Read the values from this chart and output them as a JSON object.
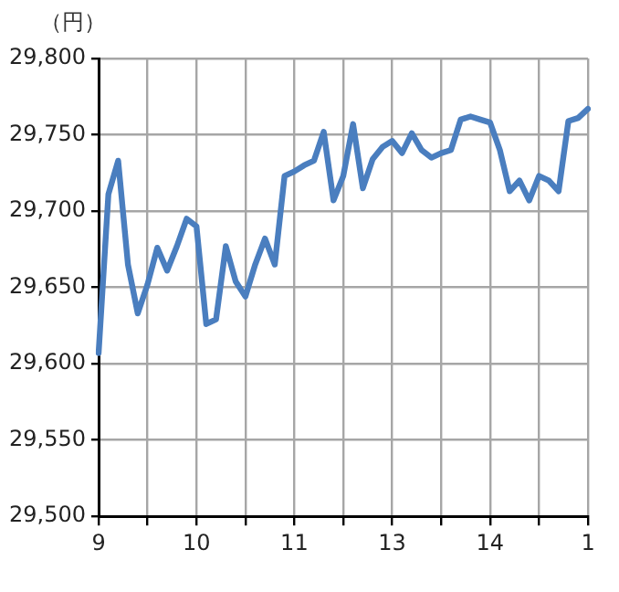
{
  "chart_data": {
    "type": "line",
    "ylabel": "（円）",
    "categories": [
      "9",
      null,
      null,
      null,
      null,
      null,
      null,
      null,
      null,
      null,
      "10",
      null,
      null,
      null,
      null,
      null,
      null,
      null,
      null,
      null,
      "11",
      null,
      null,
      null,
      null,
      null,
      null,
      null,
      null,
      null,
      "13",
      null,
      null,
      null,
      null,
      null,
      null,
      null,
      null,
      null,
      "14",
      null,
      null,
      null,
      null,
      null,
      null,
      null,
      null,
      null,
      "1"
    ],
    "ylim": [
      29500,
      29800
    ],
    "yticks": [
      {
        "value": 29500,
        "label": "29,500"
      },
      {
        "value": 29550,
        "label": "29,550"
      },
      {
        "value": 29600,
        "label": "29,600"
      },
      {
        "value": 29650,
        "label": "29,650"
      },
      {
        "value": 29700,
        "label": "29,700"
      },
      {
        "value": 29750,
        "label": "29,750"
      },
      {
        "value": 29800,
        "label": "29,800"
      }
    ],
    "grid": true,
    "legend": false,
    "marker": "none",
    "line_style": "solid",
    "series": [
      {
        "color": "#4a7ebf",
        "values": [
          29607,
          29711,
          29733,
          29665,
          29633,
          29652,
          29676,
          29661,
          29677,
          29695,
          29690,
          29626,
          29629,
          29677,
          29654,
          29644,
          29665,
          29682,
          29665,
          29723,
          29726,
          29730,
          29733,
          29752,
          29707,
          29723,
          29757,
          29715,
          29734,
          29742,
          29746,
          29738,
          29751,
          29740,
          29735,
          29738,
          29740,
          29760,
          29762,
          29760,
          29758,
          29740,
          29713,
          29720,
          29707,
          29723,
          29720,
          29713,
          29759,
          29761,
          29767
        ]
      }
    ]
  }
}
